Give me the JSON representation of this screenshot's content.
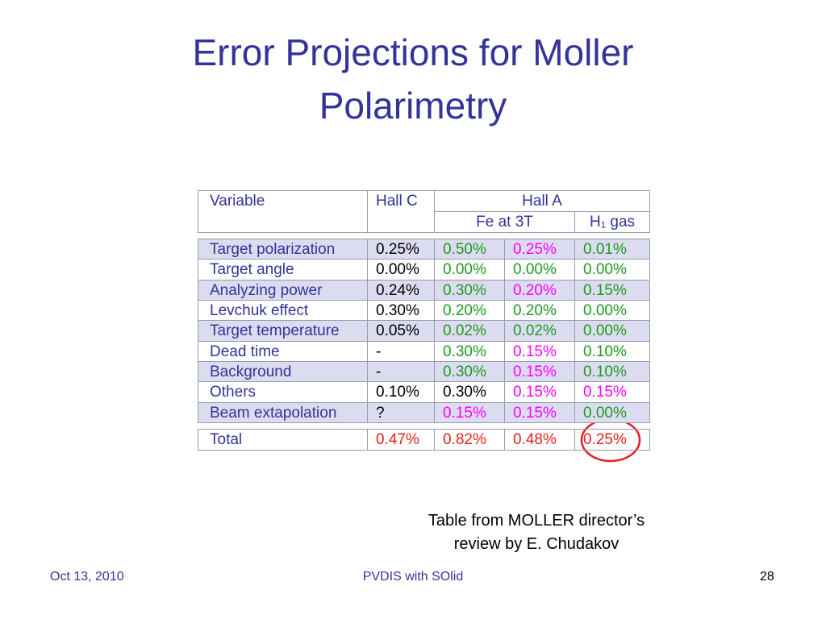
{
  "title": [
    "Error Projections for Moller",
    "Polarimetry"
  ],
  "table": {
    "header": {
      "variable": "Variable",
      "hall_c": "Hall C",
      "hall_a": "Hall A",
      "fe": "Fe at 3T",
      "h1": "H₁ gas"
    },
    "rows": [
      {
        "label": "Target polarization",
        "values": [
          "0.25%",
          "0.50%",
          "0.25%",
          "0.01%"
        ],
        "colors": [
          "#000000",
          "#1f9a1f",
          "#ff00ff",
          "#1f9a1f"
        ]
      },
      {
        "label": "Target angle",
        "values": [
          "0.00%",
          "0.00%",
          "0.00%",
          "0.00%"
        ],
        "colors": [
          "#000000",
          "#1f9a1f",
          "#1f9a1f",
          "#1f9a1f"
        ]
      },
      {
        "label": "Analyzing power",
        "values": [
          "0.24%",
          "0.30%",
          "0.20%",
          "0.15%"
        ],
        "colors": [
          "#000000",
          "#1f9a1f",
          "#ff00ff",
          "#1f9a1f"
        ]
      },
      {
        "label": "Levchuk effect",
        "values": [
          "0.30%",
          "0.20%",
          "0.20%",
          "0.00%"
        ],
        "colors": [
          "#000000",
          "#1f9a1f",
          "#1f9a1f",
          "#1f9a1f"
        ]
      },
      {
        "label": "Target temperature",
        "values": [
          "0.05%",
          "0.02%",
          "0.02%",
          "0.00%"
        ],
        "colors": [
          "#000000",
          "#1f9a1f",
          "#1f9a1f",
          "#1f9a1f"
        ]
      },
      {
        "label": "Dead time",
        "values": [
          "-",
          "0.30%",
          "0.15%",
          "0.10%"
        ],
        "colors": [
          "#000000",
          "#1f9a1f",
          "#ff00ff",
          "#1f9a1f"
        ]
      },
      {
        "label": "Background",
        "values": [
          "-",
          "0.30%",
          "0.15%",
          "0.10%"
        ],
        "colors": [
          "#000000",
          "#1f9a1f",
          "#ff00ff",
          "#1f9a1f"
        ]
      },
      {
        "label": "Others",
        "values": [
          "0.10%",
          "0.30%",
          "0.15%",
          "0.15%"
        ],
        "colors": [
          "#000000",
          "#000000",
          "#ff00ff",
          "#ff00ff"
        ]
      },
      {
        "label": "Beam extapolation",
        "values": [
          "?",
          "0.15%",
          "0.15%",
          "0.00%"
        ],
        "colors": [
          "#000000",
          "#ff00ff",
          "#ff00ff",
          "#1f9a1f"
        ]
      }
    ],
    "total": {
      "label": "Total",
      "values": [
        "0.47%",
        "0.82%",
        "0.48%",
        "0.25%"
      ],
      "colors": [
        "#e8201c",
        "#e8201c",
        "#e8201c",
        "#e8201c"
      ]
    }
  },
  "caption": [
    "Table from MOLLER director’s",
    "review by E. Chudakov"
  ],
  "footer": {
    "date": "Oct 13, 2010",
    "center": "PVDIS with SOlid",
    "page": "28"
  }
}
